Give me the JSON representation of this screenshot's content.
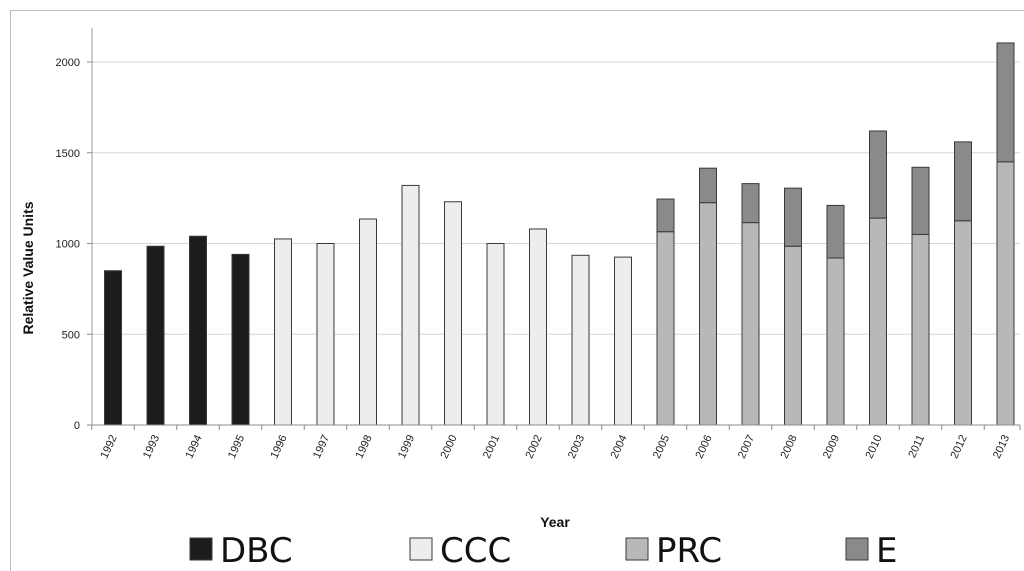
{
  "chart_data": {
    "type": "bar",
    "stacked": true,
    "categories": [
      "1992",
      "1993",
      "1994",
      "1995",
      "1996",
      "1997",
      "1998",
      "1999",
      "2000",
      "2001",
      "2002",
      "2003",
      "2004",
      "2005",
      "2006",
      "2007",
      "2008",
      "2009",
      "2010",
      "2011",
      "2012",
      "2013"
    ],
    "series": [
      {
        "name": "DBC",
        "color": "#1c1c1c",
        "values": [
          850,
          985,
          1040,
          940,
          0,
          0,
          0,
          0,
          0,
          0,
          0,
          0,
          0,
          0,
          0,
          0,
          0,
          0,
          0,
          0,
          0,
          0
        ]
      },
      {
        "name": "CCC",
        "color": "#ededed",
        "values": [
          0,
          0,
          0,
          0,
          1025,
          1000,
          1135,
          1320,
          1230,
          1000,
          1080,
          935,
          925,
          0,
          0,
          0,
          0,
          0,
          0,
          0,
          0,
          0
        ]
      },
      {
        "name": "PRC",
        "color": "#b8b8b8",
        "values": [
          0,
          0,
          0,
          0,
          0,
          0,
          0,
          0,
          0,
          0,
          0,
          0,
          0,
          1065,
          1225,
          1115,
          985,
          920,
          1140,
          1050,
          1125,
          1450
        ]
      },
      {
        "name": "E",
        "color": "#8a8a8a",
        "values": [
          0,
          0,
          0,
          0,
          0,
          0,
          0,
          0,
          0,
          0,
          0,
          0,
          0,
          180,
          190,
          215,
          320,
          290,
          480,
          370,
          435,
          655
        ]
      }
    ],
    "title": "",
    "xlabel": "Year",
    "ylabel": "Relative Value Units",
    "ylim": [
      0,
      2200
    ],
    "yticks": [
      0,
      500,
      1000,
      1500,
      2000
    ],
    "grid": true,
    "legend_position": "bottom"
  }
}
